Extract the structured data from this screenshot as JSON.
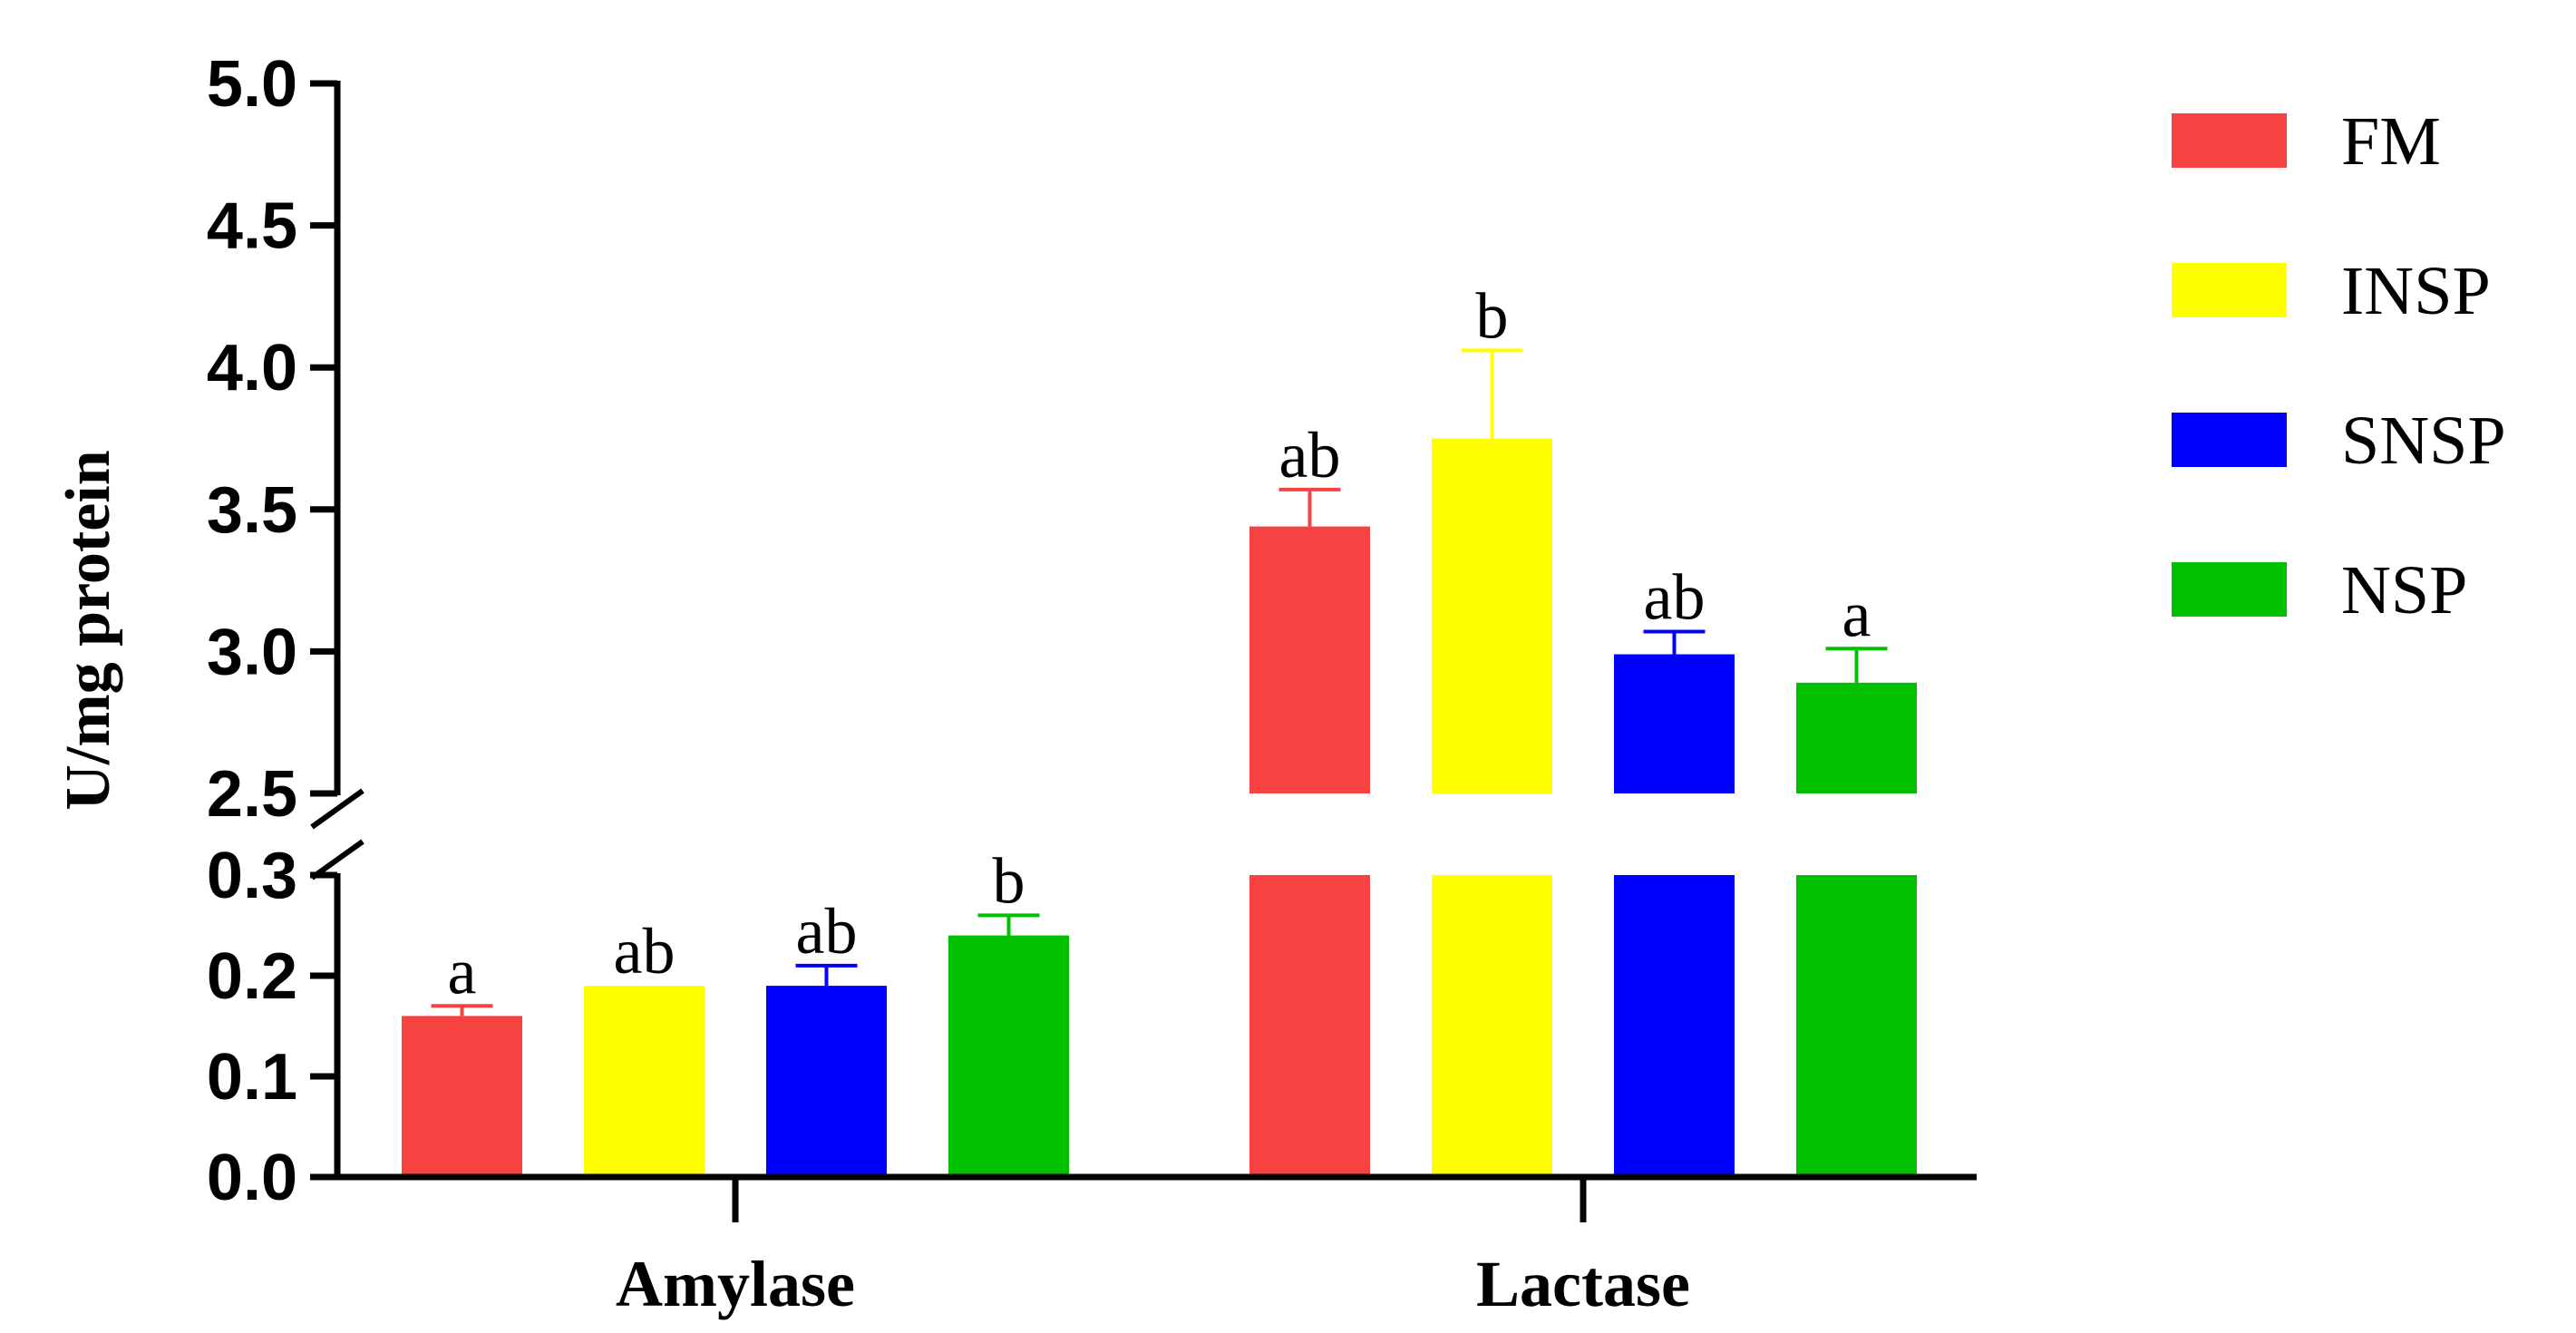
{
  "chart_data": {
    "type": "bar",
    "axis_break": true,
    "ylabel": "U/mg protein",
    "categories": [
      "Amylase",
      "Lactase"
    ],
    "segments": {
      "lower": {
        "ylim": [
          0.0,
          0.3
        ],
        "ticks": [
          "0.0",
          "0.1",
          "0.2",
          "0.3"
        ]
      },
      "upper": {
        "ylim": [
          2.5,
          5.0
        ],
        "ticks": [
          "2.5",
          "3.0",
          "3.5",
          "4.0",
          "4.5",
          "5.0"
        ]
      }
    },
    "series": [
      {
        "name": "FM",
        "color": "#f74242",
        "values": [
          0.16,
          3.44
        ],
        "errors": [
          0.01,
          0.13
        ],
        "labels": [
          "a",
          "ab"
        ]
      },
      {
        "name": "INSP",
        "color": "#ffff00",
        "values": [
          0.19,
          3.75
        ],
        "errors": [
          0.0,
          0.31
        ],
        "labels": [
          "ab",
          "b"
        ]
      },
      {
        "name": "SNSP",
        "color": "#0000ff",
        "values": [
          0.19,
          2.99
        ],
        "errors": [
          0.02,
          0.08
        ],
        "labels": [
          "ab",
          "ab"
        ]
      },
      {
        "name": "NSP",
        "color": "#00c000",
        "values": [
          0.24,
          2.89
        ],
        "errors": [
          0.02,
          0.12
        ],
        "labels": [
          "b",
          "a"
        ]
      }
    ],
    "legend_position": "top-right"
  }
}
